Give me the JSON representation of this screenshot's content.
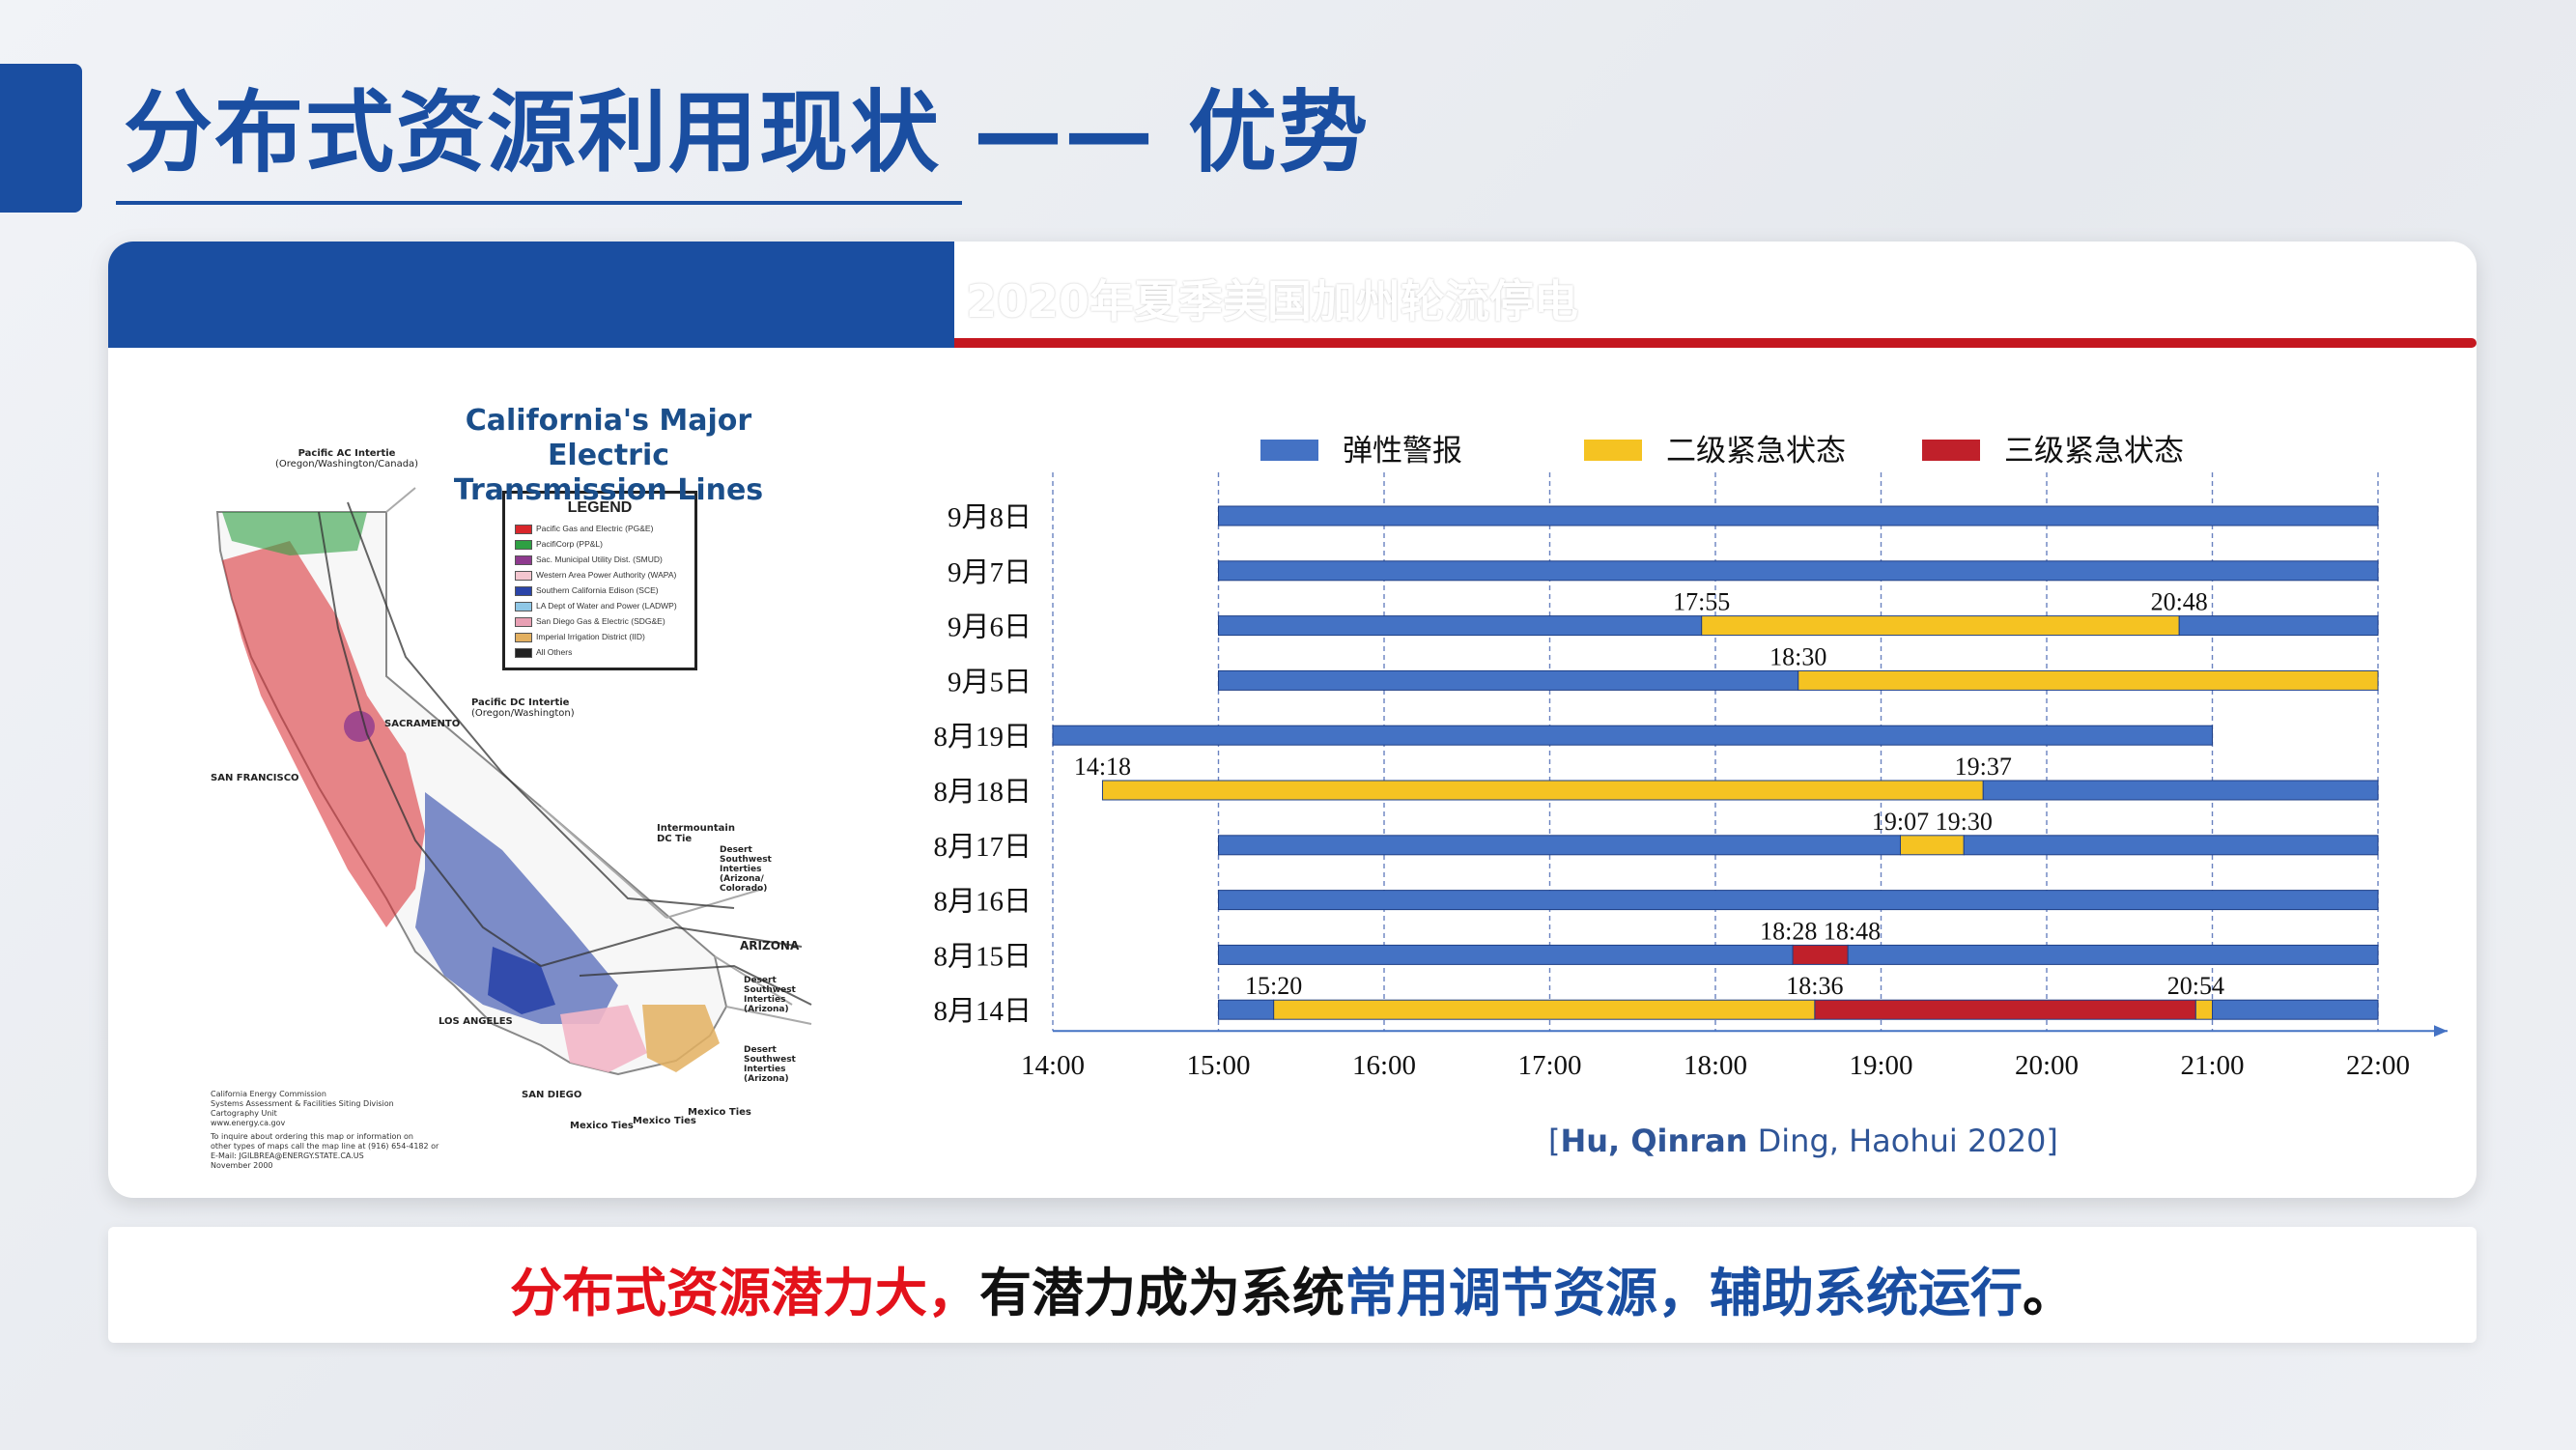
{
  "slide": {
    "title": "分布式资源利用现状 —— 优势",
    "card_title": "2020年夏季美国加州轮流停电",
    "citation_bold": "Hu, Qinran",
    "citation_rest": " Ding, Haohui 2020]",
    "citation_open": "[",
    "banner": {
      "part1": "分布式资源潜力大，",
      "part2": "有潜力成为系统",
      "part3": "常用调节资源，辅助系统运行",
      "part4": "。"
    },
    "colors": {
      "brand_blue": "#1a4ea1",
      "accent_red": "#c4171f"
    }
  },
  "map": {
    "title_line1": "California's Major Electric",
    "title_line2": "Transmission Lines",
    "legend_title": "LEGEND",
    "legend": [
      {
        "label": "Pacific Gas and Electric (PG&E)",
        "color": "#d9262b"
      },
      {
        "label": "PacifiCorp (PP&L)",
        "color": "#2ea043"
      },
      {
        "label": "Sac. Municipal Utility Dist. (SMUD)",
        "color": "#8e3a8e"
      },
      {
        "label": "Western Area Power Authority (WAPA)",
        "color": "#f4c6cf"
      },
      {
        "label": "Southern California Edison (SCE)",
        "color": "#2a44a8"
      },
      {
        "label": "LA Dept of Water and Power (LADWP)",
        "color": "#8fc7e6"
      },
      {
        "label": "San Diego Gas & Electric (SDG&E)",
        "color": "#e8a0b4"
      },
      {
        "label": "Imperial Irrigation District (IID)",
        "color": "#e3b060"
      },
      {
        "label": "All Others",
        "color": "#222222"
      }
    ],
    "labels": {
      "pac_ac": "Pacific AC Intertie",
      "pac_ac_sub": "(Oregon/Washington/Canada)",
      "pac_dc": "Pacific DC Intertie",
      "pac_dc_sub": "(Oregon/Washington)",
      "sacramento": "SACRAMENTO",
      "san_francisco": "SAN FRANCISCO",
      "intermountain": "Intermountain",
      "intermountain_sub": "DC Tie",
      "desert1": "Desert Southwest Interties (Arizona/ Colorado)",
      "arizona": "ARIZONA",
      "desert2": "Desert Southwest Interties (Arizona)",
      "desert3": "Desert Southwest Interties (Arizona)",
      "los_angeles": "LOS ANGELES",
      "san_diego": "SAN DIEGO",
      "mexico1": "Mexico Ties",
      "mexico2": "Mexico Ties",
      "mexico3": "Mexico Ties"
    },
    "notes": {
      "cec": "California Energy Commission",
      "cec2": "Systems Assessment & Facilities Siting Division",
      "cec3": "Cartography Unit",
      "cec4": "www.energy.ca.gov",
      "cec5": "To inquire about ordering this map or information on",
      "cec6": "other types of maps call the map line at (916) 654-4182 or",
      "cec7": "E-Mail: JGILBREA@ENERGY.STATE.CA.US",
      "cec8": "November 2000"
    }
  },
  "chart_data": {
    "type": "gantt",
    "legend": [
      {
        "name": "弹性警报",
        "color": "#4472c4"
      },
      {
        "name": "二级紧急状态",
        "color": "#f5c322"
      },
      {
        "name": "三级紧急状态",
        "color": "#c0202a"
      }
    ],
    "x_ticks": [
      "14:00",
      "15:00",
      "16:00",
      "17:00",
      "18:00",
      "19:00",
      "20:00",
      "21:00",
      "22:00"
    ],
    "x_range": [
      "14:00",
      "22:00"
    ],
    "rows": [
      {
        "label": "9月8日",
        "segments": [
          {
            "start": "15:00",
            "end": "22:00",
            "level": "弹性警报"
          }
        ],
        "annotations": []
      },
      {
        "label": "9月7日",
        "segments": [
          {
            "start": "15:00",
            "end": "22:00",
            "level": "弹性警报"
          }
        ],
        "annotations": []
      },
      {
        "label": "9月6日",
        "segments": [
          {
            "start": "15:00",
            "end": "17:55",
            "level": "弹性警报"
          },
          {
            "start": "17:55",
            "end": "20:48",
            "level": "二级紧急状态"
          },
          {
            "start": "20:48",
            "end": "22:00",
            "level": "弹性警报"
          }
        ],
        "annotations": [
          "17:55",
          "20:48"
        ]
      },
      {
        "label": "9月5日",
        "segments": [
          {
            "start": "15:00",
            "end": "18:30",
            "level": "弹性警报"
          },
          {
            "start": "18:30",
            "end": "22:00",
            "level": "二级紧急状态"
          }
        ],
        "annotations": [
          "18:30"
        ]
      },
      {
        "label": "8月19日",
        "segments": [
          {
            "start": "14:00",
            "end": "21:00",
            "level": "弹性警报"
          }
        ],
        "annotations": []
      },
      {
        "label": "8月18日",
        "segments": [
          {
            "start": "14:18",
            "end": "19:37",
            "level": "二级紧急状态"
          },
          {
            "start": "19:37",
            "end": "22:00",
            "level": "弹性警报"
          }
        ],
        "annotations": [
          "14:18",
          "19:37"
        ]
      },
      {
        "label": "8月17日",
        "segments": [
          {
            "start": "15:00",
            "end": "19:07",
            "level": "弹性警报"
          },
          {
            "start": "19:07",
            "end": "19:30",
            "level": "二级紧急状态"
          },
          {
            "start": "19:30",
            "end": "22:00",
            "level": "弹性警报"
          }
        ],
        "annotations": [
          "19:07",
          "19:30"
        ]
      },
      {
        "label": "8月16日",
        "segments": [
          {
            "start": "15:00",
            "end": "22:00",
            "level": "弹性警报"
          }
        ],
        "annotations": []
      },
      {
        "label": "8月15日",
        "segments": [
          {
            "start": "15:00",
            "end": "18:28",
            "level": "弹性警报"
          },
          {
            "start": "18:28",
            "end": "18:48",
            "level": "三级紧急状态"
          },
          {
            "start": "18:48",
            "end": "22:00",
            "level": "弹性警报"
          }
        ],
        "annotations": [
          "18:28 18:48"
        ]
      },
      {
        "label": "8月14日",
        "segments": [
          {
            "start": "15:00",
            "end": "15:20",
            "level": "弹性警报"
          },
          {
            "start": "15:20",
            "end": "18:36",
            "level": "二级紧急状态"
          },
          {
            "start": "18:36",
            "end": "20:54",
            "level": "三级紧急状态"
          },
          {
            "start": "20:54",
            "end": "21:00",
            "level": "二级紧急状态"
          },
          {
            "start": "21:00",
            "end": "22:00",
            "level": "弹性警报"
          }
        ],
        "annotations": [
          "15:20",
          "18:36",
          "20:54"
        ]
      }
    ]
  }
}
